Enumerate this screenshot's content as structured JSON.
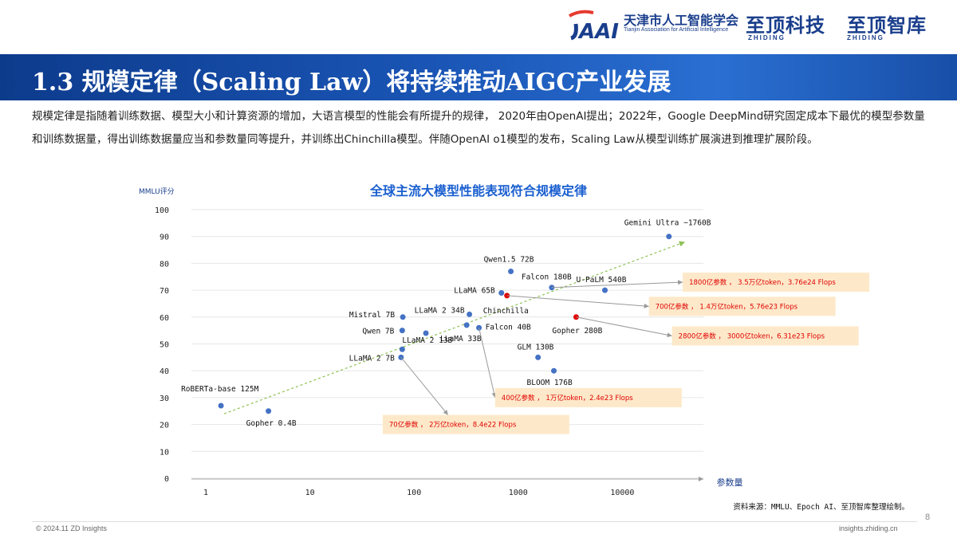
{
  "header": {
    "tai_name": "天津市人工智能学会",
    "tai_sub": "Tianjin Association for Artificial Intelligence",
    "zd_tech": "至顶科技",
    "zd_tech_sub": "ZHIDING",
    "zd_think": "至顶智库",
    "zd_think_sub": "ZHIDING"
  },
  "title": "1.3 规模定律（Scaling Law）将持续推动AIGC产业发展",
  "intro": "规模定律是指随着训练数据、模型大小和计算资源的增加，大语言模型的性能会有所提升的规律， 2020年由OpenAI提出；2022年，Google DeepMind研究固定成本下最优的模型参数量和训练数据量，得出训练数据量应当和参数量同等提升，并训练出Chinchilla模型。伴随OpenAI o1模型的发布，Scaling Law从模型训练扩展演进到推理扩展阶段。",
  "colors": {
    "title_bar": "#1a55b5",
    "chart_title": "#1a5fd0",
    "point_blue": "#4472c4",
    "point_red": "#e00000",
    "trend": "#8cc152",
    "annotation_bg": "#fde9c9",
    "annotation_text": "#e00000"
  },
  "chart_data": {
    "type": "scatter",
    "title": "全球主流大模型性能表现符合规模定律",
    "xlabel": "参数量",
    "ylabel": "MMLU评分",
    "x_scale": "log",
    "xlim": [
      1,
      60000
    ],
    "ylim": [
      0,
      100
    ],
    "x_ticks": [
      1,
      10,
      100,
      1000,
      10000
    ],
    "x_tick_labels": [
      "1",
      "10",
      "100",
      "1000",
      "10000"
    ],
    "y_ticks": [
      0,
      10,
      20,
      30,
      40,
      50,
      60,
      70,
      80,
      90,
      100
    ],
    "grid": true,
    "points": [
      {
        "label": "RoBERTa-base 125M",
        "x": 1.4,
        "y": 27,
        "color": "blue"
      },
      {
        "label": "Gopher 0.4B",
        "x": 4,
        "y": 25,
        "color": "blue"
      },
      {
        "label": "LLaMA 2 7B",
        "x": 75,
        "y": 45,
        "color": "blue"
      },
      {
        "label": "LLaMA 2 13B",
        "x": 77,
        "y": 48,
        "color": "blue"
      },
      {
        "label": "Qwen 7B",
        "x": 77,
        "y": 55,
        "color": "blue"
      },
      {
        "label": "Mistral 7B",
        "x": 78,
        "y": 60,
        "color": "blue"
      },
      {
        "label": "LLaMA 33B",
        "x": 130,
        "y": 54,
        "color": "blue"
      },
      {
        "label": "LLaMA 2 34B",
        "x": 340,
        "y": 61,
        "color": "blue"
      },
      {
        "label": "",
        "x": 320,
        "y": 57,
        "color": "blue"
      },
      {
        "label": "Falcon 40B",
        "x": 420,
        "y": 56,
        "color": "blue"
      },
      {
        "label": "LLaMA 65B",
        "x": 690,
        "y": 69,
        "color": "blue"
      },
      {
        "label": "Chinchilla",
        "x": 780,
        "y": 68,
        "color": "red"
      },
      {
        "label": "Qwen1.5 72B",
        "x": 850,
        "y": 77,
        "color": "blue"
      },
      {
        "label": "Falcon 180B",
        "x": 2100,
        "y": 71,
        "color": "blue"
      },
      {
        "label": "GLM 130B",
        "x": 1550,
        "y": 45,
        "color": "blue"
      },
      {
        "label": "BLOOM 176B",
        "x": 2200,
        "y": 40,
        "color": "blue"
      },
      {
        "label": "Gopher 280B",
        "x": 3600,
        "y": 60,
        "color": "red"
      },
      {
        "label": "U-PaLM 540B",
        "x": 6800,
        "y": 70,
        "color": "blue"
      },
      {
        "label": "Gemini Ultra ~1760B",
        "x": 28000,
        "y": 90,
        "color": "blue"
      }
    ],
    "trend_line": {
      "from": [
        1.5,
        24
      ],
      "to": [
        40000,
        88
      ]
    },
    "annotations": [
      {
        "text": "1800亿参数 ， 3.5万亿token，3.76e24 Flops",
        "target": "Falcon 180B",
        "box_x": 38000,
        "box_y": 73
      },
      {
        "text": "700亿参数 ， 1.4万亿token，5.76e23 Flops",
        "target": "Chinchilla",
        "box_x": 18000,
        "box_y": 64
      },
      {
        "text": "2800亿参数 ， 3000亿token，6.31e23 Flops",
        "target": "Gopher 280B",
        "box_x": 30000,
        "box_y": 53
      },
      {
        "text": "400亿参数 ， 1万亿token，2.4e23 Flops",
        "target": "Falcon 40B",
        "box_x": 600,
        "box_y": 30
      },
      {
        "text": "70亿参数 ， 2万亿token，8.4e22 Flops",
        "target": "LLaMA 2 7B",
        "box_x": 50,
        "box_y": 20
      }
    ],
    "source": "资料来源：MMLU、Epoch AI、至顶智库整理绘制。"
  },
  "footer": {
    "left": "© 2024.11 ZD Insights",
    "right": "insights.zhiding.cn",
    "page": "8"
  }
}
